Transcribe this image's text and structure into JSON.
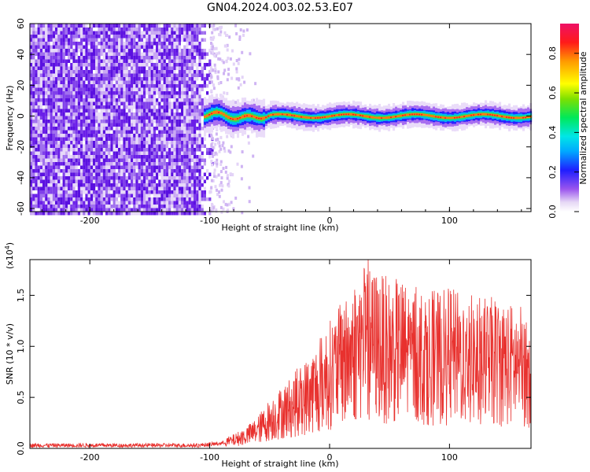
{
  "title": "GN04.2024.003.02.53.E07",
  "spectrogram": {
    "type": "heatmap",
    "xlabel": "Height of straight line (km)",
    "ylabel": "Frequency (Hz)",
    "xlim": [
      -250,
      168
    ],
    "ylim": [
      -62,
      60
    ],
    "x_ticks": [
      "-200",
      "-100",
      "0",
      "100"
    ],
    "x_tick_values": [
      -200,
      -100,
      0,
      100
    ],
    "y_ticks": [
      "-60",
      "-40",
      "-20",
      "0",
      "20",
      "40",
      "60"
    ],
    "y_tick_values": [
      -60,
      -40,
      -20,
      0,
      20,
      40,
      60
    ],
    "noise_region_x": [
      -250,
      -98
    ],
    "signal_band_x_start": -105,
    "signal_band_center_hz": 0,
    "signal_band_halfwidth_hz": 4,
    "colorbar": {
      "label": "Normalized spectral amplitude",
      "range": [
        0,
        0.95
      ],
      "ticks": [
        "0.0",
        "0.2",
        "0.4",
        "0.6",
        "0.8"
      ],
      "tick_values": [
        0.0,
        0.2,
        0.4,
        0.6,
        0.8
      ]
    }
  },
  "chart_data": {
    "type": "line",
    "title": "",
    "xlabel": "Height of straight line (km)",
    "ylabel": "SNR (10 * v/v)",
    "multiplier": "(x10",
    "multiplier_exp": "4",
    "multiplier_close": ")",
    "xlim": [
      -250,
      168
    ],
    "ylim": [
      0,
      1.85
    ],
    "x_ticks": [
      "-200",
      "-100",
      "0",
      "100"
    ],
    "x_tick_values": [
      -200,
      -100,
      0,
      100
    ],
    "y_ticks": [
      "0.0",
      "0.5",
      "1.0",
      "1.5"
    ],
    "y_tick_values": [
      0.0,
      0.5,
      1.0,
      1.5
    ],
    "color": "#e8312e",
    "series": [
      {
        "x": [
          -250,
          -200,
          -150,
          -110,
          -100,
          -90,
          -80,
          -70,
          -60,
          -50,
          -40,
          -30,
          -20,
          -10,
          0,
          10,
          20,
          30,
          40,
          50,
          60,
          70,
          80,
          90,
          100,
          110,
          120,
          130,
          140,
          150,
          160,
          168
        ],
        "y": [
          0.03,
          0.03,
          0.03,
          0.03,
          0.04,
          0.05,
          0.08,
          0.12,
          0.18,
          0.28,
          0.35,
          0.42,
          0.5,
          0.6,
          0.72,
          0.82,
          0.95,
          1.05,
          1.0,
          0.95,
          0.95,
          0.92,
          0.9,
          0.88,
          0.9,
          0.88,
          0.86,
          0.85,
          0.85,
          0.82,
          0.8,
          0.78
        ]
      }
    ]
  }
}
